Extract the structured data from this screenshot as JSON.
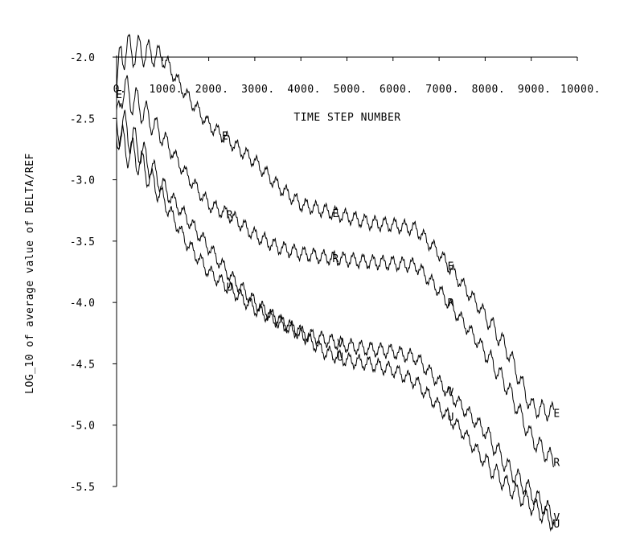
{
  "chart_data": {
    "type": "line",
    "xlabel": "TIME STEP NUMBER",
    "ylabel": "LOG_10 of average value of DELTA/REF",
    "xlim": [
      0,
      10000
    ],
    "ylim": [
      -5.5,
      -2.0
    ],
    "x_ticks": [
      0,
      1000,
      2000,
      3000,
      4000,
      5000,
      6000,
      7000,
      8000,
      9000,
      10000
    ],
    "x_tick_labels": [
      "0.",
      "1000.",
      "2000.",
      "3000.",
      "4000.",
      "5000.",
      "6000.",
      "7000.",
      "8000.",
      "9000.",
      "10000."
    ],
    "y_ticks": [
      -2.0,
      -2.5,
      -3.0,
      -3.5,
      -4.0,
      -4.5,
      -5.0,
      -5.5
    ],
    "y_tick_labels": [
      "-2.0",
      "-2.5",
      "-3.0",
      "-3.5",
      "-4.0",
      "-4.5",
      "-5.0",
      "-5.5"
    ],
    "y_direction": "down",
    "x_axis_position": "top",
    "grid": false,
    "series": [
      {
        "name": "E",
        "x": [
          0,
          100,
          500,
          1000,
          1500,
          2000,
          2500,
          3000,
          3500,
          4000,
          4500,
          5000,
          5500,
          6000,
          6500,
          7000,
          7500,
          8000,
          8500,
          9000,
          9500
        ],
        "y": [
          -2.3,
          -1.95,
          -1.95,
          -2.0,
          -2.3,
          -2.55,
          -2.7,
          -2.85,
          -3.05,
          -3.2,
          -3.25,
          -3.3,
          -3.35,
          -3.37,
          -3.4,
          -3.6,
          -3.85,
          -4.1,
          -4.4,
          -4.85,
          -4.9
        ],
        "markers": [
          {
            "label": "E",
            "x": 0
          },
          {
            "label": "E",
            "x": 2300
          },
          {
            "label": "E",
            "x": 4700
          },
          {
            "label": "E",
            "x": 7200
          },
          {
            "label": "E",
            "x": 9500
          }
        ]
      },
      {
        "name": "R",
        "x": [
          0,
          100,
          500,
          1000,
          1500,
          2000,
          2500,
          3000,
          3500,
          4000,
          4500,
          5000,
          5500,
          6000,
          6500,
          7000,
          7500,
          8000,
          8500,
          9000,
          9500
        ],
        "y": [
          -2.6,
          -2.25,
          -2.4,
          -2.65,
          -2.95,
          -3.2,
          -3.3,
          -3.45,
          -3.55,
          -3.6,
          -3.63,
          -3.65,
          -3.67,
          -3.68,
          -3.7,
          -3.9,
          -4.15,
          -4.4,
          -4.7,
          -5.1,
          -5.3
        ],
        "markers": [
          {
            "label": "R",
            "x": 2400
          },
          {
            "label": "R",
            "x": 4700
          },
          {
            "label": "R",
            "x": 7200
          },
          {
            "label": "R",
            "x": 9500
          }
        ]
      },
      {
        "name": "V",
        "x": [
          0,
          100,
          500,
          1000,
          1500,
          2000,
          2500,
          3000,
          3500,
          4000,
          4500,
          5000,
          5500,
          6000,
          6500,
          7000,
          7500,
          8000,
          8500,
          9000,
          9500
        ],
        "y": [
          -2.6,
          -2.55,
          -2.75,
          -3.05,
          -3.3,
          -3.55,
          -3.8,
          -4.0,
          -4.15,
          -4.25,
          -4.3,
          -4.35,
          -4.38,
          -4.4,
          -4.45,
          -4.65,
          -4.85,
          -5.05,
          -5.35,
          -5.55,
          -5.75
        ],
        "markers": [
          {
            "label": "V",
            "x": 4800
          },
          {
            "label": "V",
            "x": 7200
          },
          {
            "label": "V",
            "x": 9500
          }
        ]
      },
      {
        "name": "U",
        "x": [
          0,
          100,
          500,
          1000,
          1500,
          2000,
          2500,
          3000,
          3500,
          4000,
          4500,
          5000,
          5500,
          6000,
          6500,
          7000,
          7500,
          8000,
          8500,
          9000,
          9500
        ],
        "y": [
          -2.55,
          -2.7,
          -2.85,
          -3.15,
          -3.5,
          -3.75,
          -3.9,
          -4.05,
          -4.15,
          -4.25,
          -4.4,
          -4.47,
          -4.5,
          -4.55,
          -4.65,
          -4.85,
          -5.05,
          -5.3,
          -5.5,
          -5.65,
          -5.8
        ],
        "markers": [
          {
            "label": "U",
            "x": 2400
          },
          {
            "label": "U",
            "x": 4800
          },
          {
            "label": "U",
            "x": 7200
          },
          {
            "label": "U",
            "x": 9500
          }
        ]
      }
    ]
  }
}
